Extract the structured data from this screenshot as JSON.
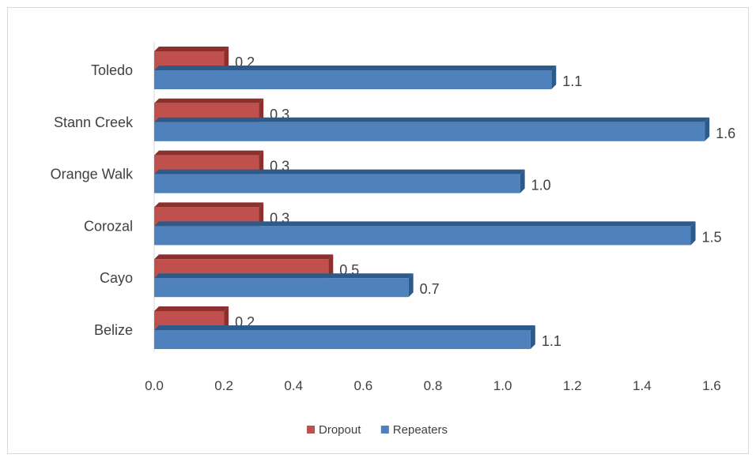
{
  "chart_data": {
    "type": "bar",
    "orientation": "horizontal",
    "categories": [
      "Belize",
      "Cayo",
      "Corozal",
      "Orange Walk",
      "Stann Creek",
      "Toledo"
    ],
    "series": [
      {
        "name": "Dropout",
        "values": [
          0.2,
          0.5,
          0.3,
          0.3,
          0.3,
          0.2
        ],
        "labels": [
          "0.2",
          "0.5",
          "0.3",
          "0.3",
          "0.3",
          "0.2"
        ],
        "color": "#c0504d",
        "dark_color": "#8c2f2d"
      },
      {
        "name": "Repeaters",
        "values": [
          1.08,
          0.73,
          1.54,
          1.05,
          1.58,
          1.14
        ],
        "labels": [
          "1.1",
          "0.7",
          "1.5",
          "1.0",
          "1.6",
          "1.1"
        ],
        "color": "#4f81bd",
        "dark_color": "#2e5a8a"
      }
    ],
    "xlim": [
      0,
      1.6
    ],
    "xticks": [
      "0.0",
      "0.2",
      "0.4",
      "0.6",
      "0.8",
      "1.0",
      "1.2",
      "1.4",
      "1.6"
    ],
    "xtick_values": [
      0,
      0.2,
      0.4,
      0.6,
      0.8,
      1.0,
      1.2,
      1.4,
      1.6
    ],
    "grid": false,
    "legend_position": "bottom",
    "style": "3d-bar"
  }
}
